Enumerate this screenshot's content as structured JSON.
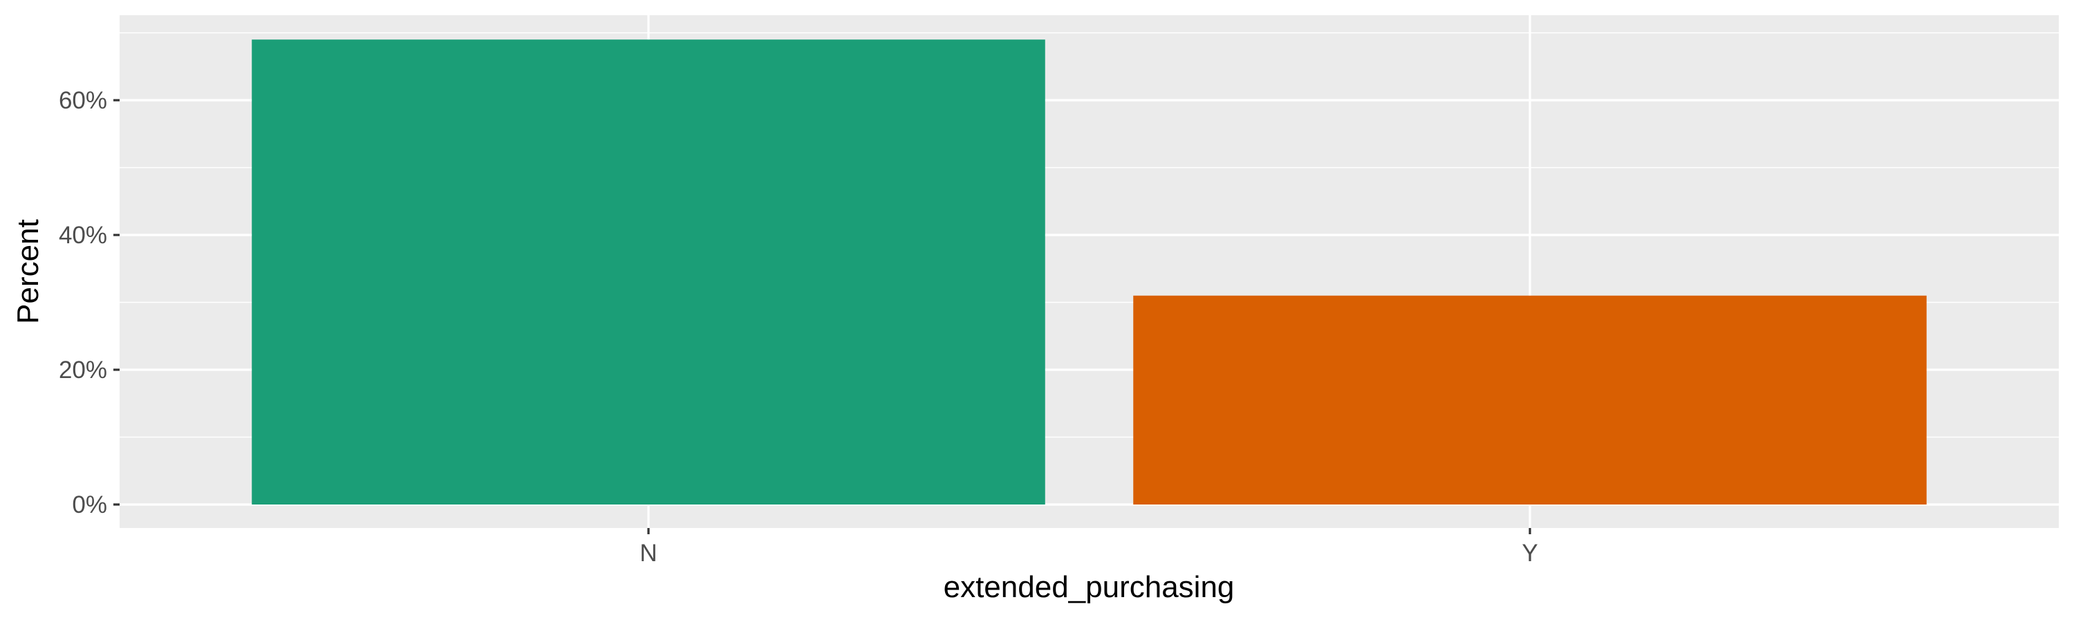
{
  "chart_data": {
    "type": "bar",
    "title": "",
    "xlabel": "extended_purchasing",
    "ylabel": "Percent",
    "categories": [
      "N",
      "Y"
    ],
    "values": [
      69,
      31
    ],
    "value_unit": "percent",
    "ylim": [
      0,
      70
    ],
    "yticks": [
      0,
      20,
      40,
      60
    ],
    "ytick_labels": [
      "0%",
      "20%",
      "40%",
      "60%"
    ],
    "bar_colors": [
      "#1b9e77",
      "#d95f02"
    ],
    "grid": true,
    "legend": "none"
  },
  "colors": {
    "panel_background": "#ebebeb",
    "grid_line": "#ffffff"
  }
}
